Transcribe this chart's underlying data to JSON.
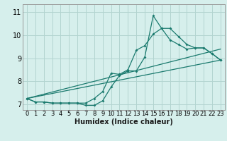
{
  "xlabel": "Humidex (Indice chaleur)",
  "xlim": [
    -0.5,
    23.5
  ],
  "ylim": [
    6.75,
    11.35
  ],
  "yticks": [
    7,
    8,
    9,
    10,
    11
  ],
  "xticks": [
    0,
    1,
    2,
    3,
    4,
    5,
    6,
    7,
    8,
    9,
    10,
    11,
    12,
    13,
    14,
    15,
    16,
    17,
    18,
    19,
    20,
    21,
    22,
    23
  ],
  "background_color": "#d6efec",
  "grid_color": "#b2d4d0",
  "line_color": "#1a7a6e",
  "line1_x": [
    0,
    1,
    2,
    3,
    4,
    5,
    6,
    7,
    8,
    9,
    10,
    11,
    12,
    13,
    14,
    15,
    16,
    17,
    18,
    19,
    20,
    21,
    22,
    23
  ],
  "line1_y": [
    7.25,
    7.1,
    7.1,
    7.05,
    7.05,
    7.05,
    7.05,
    6.95,
    6.95,
    7.15,
    7.75,
    8.25,
    8.45,
    8.45,
    9.05,
    10.85,
    10.3,
    10.3,
    9.95,
    9.6,
    9.45,
    9.45,
    9.2,
    8.92
  ],
  "line2_x": [
    0,
    1,
    2,
    3,
    4,
    5,
    6,
    7,
    8,
    9,
    10,
    11,
    12,
    13,
    14,
    15,
    16,
    17,
    18,
    19,
    20,
    21,
    22,
    23
  ],
  "line2_y": [
    7.25,
    7.1,
    7.1,
    7.05,
    7.05,
    7.05,
    7.05,
    7.05,
    7.25,
    7.55,
    8.35,
    8.3,
    8.5,
    9.35,
    9.55,
    10.05,
    10.3,
    9.8,
    9.6,
    9.4,
    9.45,
    9.45,
    9.2,
    8.92
  ],
  "line3_start_x": 0,
  "line3_start_y": 7.25,
  "line3_end_x": 23,
  "line3_end_y": 8.92,
  "line4_start_x": 0,
  "line4_start_y": 7.25,
  "line4_end_x": 23,
  "line4_end_y": 9.4,
  "tick_fontsize": 6,
  "xlabel_fontsize": 7
}
